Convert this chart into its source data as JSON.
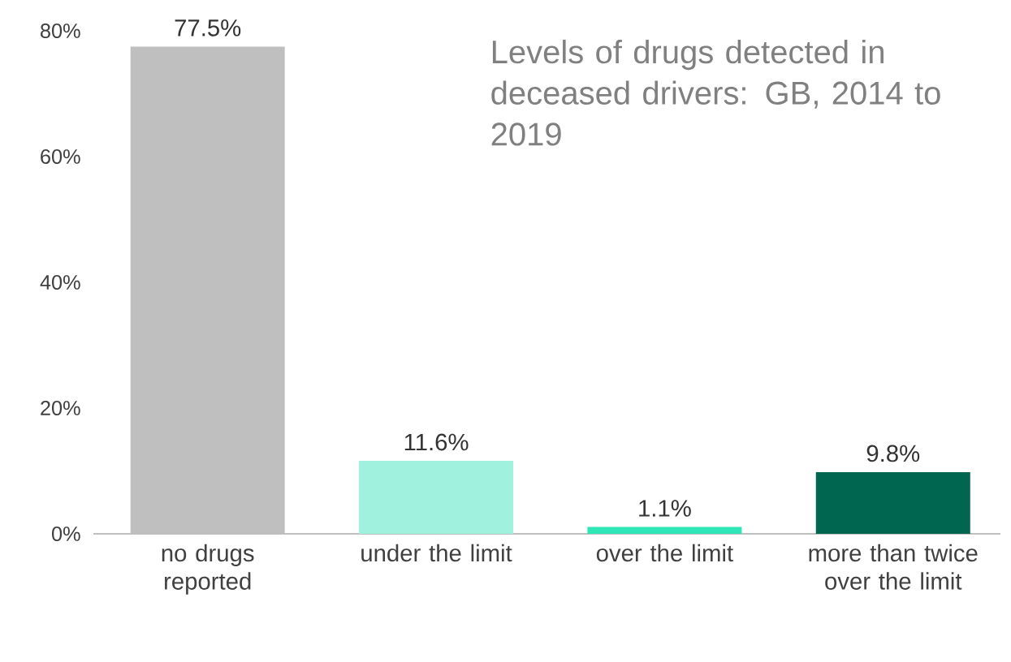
{
  "chart_data": {
    "type": "bar",
    "title": "Levels of drugs detected in deceased drivers: GB, 2014 to 2019",
    "categories": [
      "no drugs reported",
      "under the limit",
      "over the limit",
      "more than twice over the limit"
    ],
    "values": [
      77.5,
      11.6,
      1.1,
      9.8
    ],
    "colors": [
      "#bfbfbf",
      "#a0f2de",
      "#2ee6b6",
      "#006650"
    ],
    "value_labels": [
      "77.5%",
      "11.6%",
      "1.1%",
      "9.8%"
    ],
    "ylim": [
      0,
      80
    ],
    "yticks": [
      {
        "value": 0,
        "label": "0%"
      },
      {
        "value": 20,
        "label": "20%"
      },
      {
        "value": 40,
        "label": "40%"
      },
      {
        "value": 60,
        "label": "60%"
      },
      {
        "value": 80,
        "label": "80%"
      }
    ]
  }
}
